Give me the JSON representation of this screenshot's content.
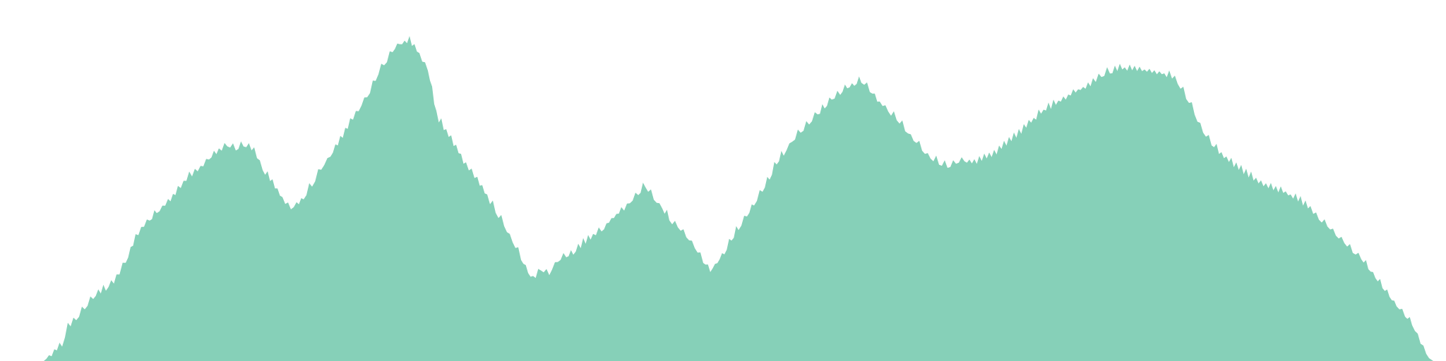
{
  "image": {
    "subject": "forested-mountain-ridge-silhouette",
    "colors": {
      "background": "#ffffff",
      "silhouette": "#86d0b8"
    }
  }
}
